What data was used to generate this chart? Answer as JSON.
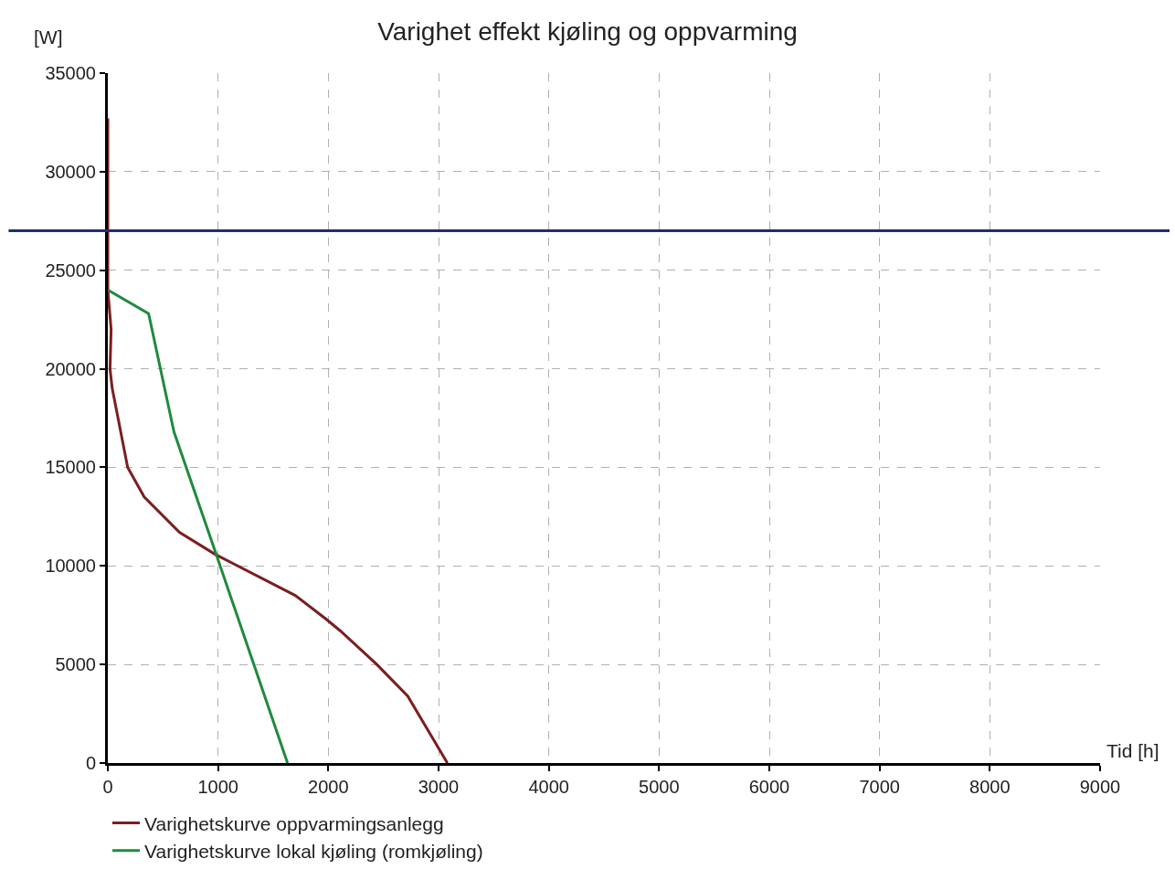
{
  "chart_data": {
    "type": "line",
    "title": "Varighet effekt kjøling og oppvarming",
    "xlabel": "Tid [h]",
    "ylabel": "[W]",
    "xlim": [
      0,
      9000
    ],
    "xticks": [
      0,
      1000,
      2000,
      3000,
      4000,
      5000,
      6000,
      7000,
      8000,
      9000
    ],
    "ylim": [
      0,
      35000
    ],
    "yticks": [
      0,
      5000,
      10000,
      15000,
      20000,
      25000,
      30000,
      35000
    ],
    "grid": true,
    "legend": "bottom left",
    "marker": "none",
    "line_style": "solid",
    "series": [
      {
        "name": "Varighetskurve oppvarmingsanlegg",
        "color": "#7a1f1f",
        "x": [
          0,
          0,
          30,
          20,
          40,
          180,
          330,
          650,
          970,
          1700,
          1980,
          2110,
          2440,
          2720,
          3080
        ],
        "values": [
          32700,
          24000,
          22000,
          20000,
          19000,
          15000,
          13500,
          11700,
          10600,
          8500,
          7300,
          6700,
          5000,
          3400,
          0
        ]
      },
      {
        "name": "Varighetskurve lokal kjøling (romkjøling)",
        "color": "#1f8a3f",
        "x": [
          0,
          370,
          600,
          970,
          1630
        ],
        "values": [
          24000,
          22800,
          16800,
          10800,
          0
        ]
      }
    ],
    "ref_lines": [
      {
        "axis": "y",
        "value": 27000,
        "color": "#1f2f6b",
        "line_style": "solid"
      }
    ]
  }
}
